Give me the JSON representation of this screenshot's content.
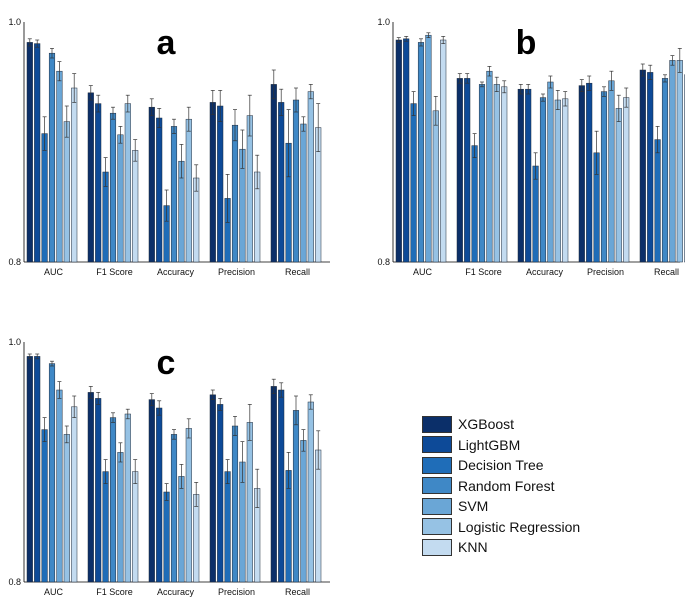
{
  "chart_data": [
    {
      "type": "bar",
      "panel_label": "a",
      "categories": [
        "AUC",
        "F1 Score",
        "Accuracy",
        "Precision",
        "Recall"
      ],
      "ylim": [
        0.8,
        1.0
      ],
      "yticks": [
        "1.0",
        "0.8"
      ],
      "series": [
        {
          "name": "XGBoost",
          "values": [
            0.983,
            0.941,
            0.929,
            0.933,
            0.948
          ],
          "errors": [
            0.003,
            0.006,
            0.007,
            0.01,
            0.012
          ]
        },
        {
          "name": "LightGBM",
          "values": [
            0.982,
            0.932,
            0.92,
            0.93,
            0.933
          ],
          "errors": [
            0.003,
            0.007,
            0.008,
            0.013,
            0.011
          ]
        },
        {
          "name": "Decision Tree",
          "values": [
            0.907,
            0.875,
            0.847,
            0.853,
            0.899
          ],
          "errors": [
            0.014,
            0.012,
            0.013,
            0.02,
            0.028
          ]
        },
        {
          "name": "Random Forest",
          "values": [
            0.974,
            0.924,
            0.913,
            0.914,
            0.935
          ],
          "errors": [
            0.004,
            0.005,
            0.006,
            0.013,
            0.01
          ]
        },
        {
          "name": "SVM",
          "values": [
            0.959,
            0.906,
            0.884,
            0.894,
            0.915
          ],
          "errors": [
            0.008,
            0.007,
            0.014,
            0.016,
            0.006
          ]
        },
        {
          "name": "Logistic Regression",
          "values": [
            0.917,
            0.932,
            0.919,
            0.922,
            0.942
          ],
          "errors": [
            0.013,
            0.007,
            0.01,
            0.017,
            0.006
          ]
        },
        {
          "name": "KNN",
          "values": [
            0.945,
            0.893,
            0.87,
            0.875,
            0.912
          ],
          "errors": [
            0.012,
            0.009,
            0.011,
            0.014,
            0.02
          ]
        }
      ]
    },
    {
      "type": "bar",
      "panel_label": "b",
      "categories": [
        "AUC",
        "F1 Score",
        "Accuracy",
        "Precision",
        "Recall"
      ],
      "ylim": [
        0.8,
        1.0
      ],
      "yticks": [
        "1.0",
        "0.8"
      ],
      "series": [
        {
          "name": "XGBoost",
          "values": [
            0.985,
            0.953,
            0.944,
            0.947,
            0.96
          ],
          "errors": [
            0.002,
            0.004,
            0.004,
            0.005,
            0.005
          ]
        },
        {
          "name": "LightGBM",
          "values": [
            0.986,
            0.953,
            0.944,
            0.949,
            0.958
          ],
          "errors": [
            0.002,
            0.004,
            0.004,
            0.006,
            0.006
          ]
        },
        {
          "name": "Decision Tree",
          "values": [
            0.932,
            0.897,
            0.88,
            0.891,
            0.902
          ],
          "errors": [
            0.01,
            0.01,
            0.011,
            0.018,
            0.011
          ]
        },
        {
          "name": "Random Forest",
          "values": [
            0.983,
            0.948,
            0.937,
            0.942,
            0.953
          ],
          "errors": [
            0.003,
            0.002,
            0.003,
            0.004,
            0.003
          ]
        },
        {
          "name": "SVM",
          "values": [
            0.989,
            0.959,
            0.95,
            0.951,
            0.968
          ],
          "errors": [
            0.002,
            0.004,
            0.005,
            0.008,
            0.004
          ]
        },
        {
          "name": "Logistic Regression",
          "values": [
            0.926,
            0.948,
            0.935,
            0.928,
            0.968
          ],
          "errors": [
            0.012,
            0.006,
            0.008,
            0.011,
            0.01
          ]
        },
        {
          "name": "KNN",
          "values": [
            0.985,
            0.946,
            0.936,
            0.937,
            0.956
          ],
          "errors": [
            0.003,
            0.005,
            0.006,
            0.008,
            0.004
          ]
        }
      ]
    },
    {
      "type": "bar",
      "panel_label": "c",
      "categories": [
        "AUC",
        "F1 Score",
        "Accuracy",
        "Precision",
        "Recall"
      ],
      "ylim": [
        0.8,
        1.0
      ],
      "yticks": [
        "1.0",
        "0.8"
      ],
      "series": [
        {
          "name": "XGBoost",
          "values": [
            0.988,
            0.958,
            0.952,
            0.956,
            0.963
          ],
          "errors": [
            0.002,
            0.005,
            0.005,
            0.004,
            0.006
          ]
        },
        {
          "name": "LightGBM",
          "values": [
            0.988,
            0.953,
            0.945,
            0.948,
            0.96
          ],
          "errors": [
            0.002,
            0.005,
            0.006,
            0.005,
            0.006
          ]
        },
        {
          "name": "Decision Tree",
          "values": [
            0.927,
            0.892,
            0.875,
            0.892,
            0.893
          ],
          "errors": [
            0.01,
            0.01,
            0.007,
            0.01,
            0.015
          ]
        },
        {
          "name": "Random Forest",
          "values": [
            0.982,
            0.937,
            0.923,
            0.93,
            0.943
          ],
          "errors": [
            0.002,
            0.004,
            0.004,
            0.008,
            0.012
          ]
        },
        {
          "name": "SVM",
          "values": [
            0.96,
            0.908,
            0.888,
            0.9,
            0.918
          ],
          "errors": [
            0.007,
            0.008,
            0.01,
            0.017,
            0.009
          ]
        },
        {
          "name": "Logistic Regression",
          "values": [
            0.923,
            0.94,
            0.928,
            0.933,
            0.95
          ],
          "errors": [
            0.007,
            0.004,
            0.008,
            0.015,
            0.006
          ]
        },
        {
          "name": "KNN",
          "values": [
            0.946,
            0.892,
            0.873,
            0.878,
            0.91
          ],
          "errors": [
            0.009,
            0.01,
            0.01,
            0.016,
            0.016
          ]
        }
      ]
    }
  ],
  "legend": {
    "items": [
      {
        "label": "XGBoost",
        "color": "#0b2f69"
      },
      {
        "label": "LightGBM",
        "color": "#0d4a98"
      },
      {
        "label": "Decision Tree",
        "color": "#1f6db8"
      },
      {
        "label": "Random Forest",
        "color": "#3f88c6"
      },
      {
        "label": "SVM",
        "color": "#6aa6d6"
      },
      {
        "label": "Logistic Regression",
        "color": "#96c2e4"
      },
      {
        "label": "KNN",
        "color": "#c3dbf0"
      }
    ]
  }
}
